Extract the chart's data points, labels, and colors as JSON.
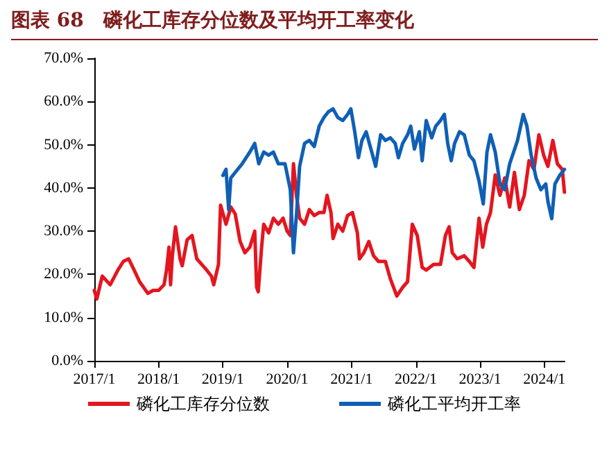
{
  "chart_data": {
    "type": "line",
    "title": "图表 68　磷化工库存分位数及平均开工率变化",
    "xlim": [
      "2017-01-01",
      "2024-04-25"
    ],
    "xticks": [
      {
        "value": "2017-01-01",
        "label": "2017/1"
      },
      {
        "value": "2018-01-01",
        "label": "2018/1"
      },
      {
        "value": "2019-01-01",
        "label": "2019/1"
      },
      {
        "value": "2020-01-01",
        "label": "2020/1"
      },
      {
        "value": "2021-01-01",
        "label": "2021/1"
      },
      {
        "value": "2022-01-01",
        "label": "2022/1"
      },
      {
        "value": "2023-01-01",
        "label": "2023/1"
      },
      {
        "value": "2024-01-01",
        "label": "2024/1"
      }
    ],
    "ylim": [
      0,
      70
    ],
    "yticks": [
      {
        "value": 0,
        "label": "0.0%"
      },
      {
        "value": 10,
        "label": "10.0%"
      },
      {
        "value": 20,
        "label": "20.0%"
      },
      {
        "value": 30,
        "label": "30.0%"
      },
      {
        "value": 40,
        "label": "40.0%"
      },
      {
        "value": 50,
        "label": "50.0%"
      },
      {
        "value": 60,
        "label": "60.0%"
      },
      {
        "value": 70,
        "label": "70.0%"
      }
    ],
    "grid": false,
    "legend": "bottom",
    "marker": "none",
    "line_style": "solid",
    "series": [
      {
        "name": "磷化工库存分位数",
        "color": "#e3161f",
        "x": [
          "2017-01-01",
          "2017-01-15",
          "2017-02-15",
          "2017-04-01",
          "2017-05-15",
          "2017-06-15",
          "2017-07-15",
          "2017-08-15",
          "2017-09-15",
          "2017-11-01",
          "2017-12-01",
          "2018-01-01",
          "2018-02-01",
          "2018-02-15",
          "2018-03-01",
          "2018-03-10",
          "2018-03-20",
          "2018-04-07",
          "2018-05-03",
          "2018-05-15",
          "2018-06-12",
          "2018-07-10",
          "2018-08-06",
          "2018-09-03",
          "2018-10-01",
          "2018-10-28",
          "2018-11-10",
          "2018-12-07",
          "2018-12-19",
          "2019-01-19",
          "2019-02-15",
          "2019-03-12",
          "2019-04-09",
          "2019-05-06",
          "2019-06-03",
          "2019-07-01",
          "2019-07-12",
          "2019-07-21",
          "2019-08-09",
          "2019-08-21",
          "2019-09-18",
          "2019-10-15",
          "2019-11-12",
          "2019-12-09",
          "2020-01-01",
          "2020-01-19",
          "2020-02-06",
          "2020-02-24",
          "2020-03-12",
          "2020-04-09",
          "2020-05-06",
          "2020-06-03",
          "2020-07-01",
          "2020-07-28",
          "2020-08-15",
          "2020-09-06",
          "2020-09-18",
          "2020-10-15",
          "2020-11-12",
          "2020-12-09",
          "2021-01-06",
          "2021-02-03",
          "2021-02-15",
          "2021-03-12",
          "2021-04-09",
          "2021-05-06",
          "2021-06-03",
          "2021-07-12",
          "2021-08-09",
          "2021-09-15",
          "2021-10-18",
          "2021-11-15",
          "2021-12-12",
          "2022-01-09",
          "2022-02-06",
          "2022-03-01",
          "2022-04-12",
          "2022-05-21",
          "2022-06-18",
          "2022-07-09",
          "2022-07-27",
          "2022-08-24",
          "2022-10-03",
          "2022-11-01",
          "2022-11-27",
          "2022-12-26",
          "2023-01-16",
          "2023-02-06",
          "2023-03-01",
          "2023-03-28",
          "2023-04-24",
          "2023-05-21",
          "2023-06-18",
          "2023-07-15",
          "2023-08-12",
          "2023-09-09",
          "2023-10-06",
          "2023-11-03",
          "2023-12-01",
          "2023-12-28",
          "2024-01-21",
          "2024-02-18",
          "2024-03-15",
          "2024-04-12",
          "2024-04-24"
        ],
        "values": [
          16.3,
          14.3,
          19.6,
          17.6,
          21,
          23,
          23.6,
          21,
          18.3,
          15.6,
          16.3,
          16.3,
          17.6,
          21,
          26.3,
          17.6,
          24.3,
          31,
          23.6,
          22,
          28,
          29,
          23.6,
          22.3,
          21,
          19.6,
          17.6,
          22.3,
          36,
          31.6,
          35.6,
          34,
          27.6,
          25,
          26.3,
          30,
          17,
          16,
          26.3,
          31.6,
          29.6,
          33,
          31.6,
          33,
          30,
          29,
          45.6,
          38,
          33,
          31.6,
          35,
          33.6,
          34.3,
          34.3,
          38.3,
          34.3,
          28.3,
          31.6,
          30,
          33.6,
          34.3,
          29.6,
          23.6,
          25,
          27.6,
          24.3,
          23,
          23,
          19,
          15,
          17,
          18.3,
          31.6,
          29,
          21.6,
          21,
          22.3,
          22.3,
          29,
          31,
          25,
          23.6,
          24.3,
          23,
          21.6,
          33,
          26.3,
          31.6,
          34.3,
          43,
          38.3,
          42.3,
          35.6,
          43.6,
          35,
          38.3,
          46.3,
          44.3,
          52.3,
          47.6,
          45,
          51,
          45.6,
          44.3,
          39
        ]
      },
      {
        "name": "磷化工平均开工率",
        "color": "#0f5fb5",
        "x": [
          "2019-01-01",
          "2019-01-19",
          "2019-02-03",
          "2019-02-15",
          "2019-03-12",
          "2019-04-21",
          "2019-06-03",
          "2019-07-01",
          "2019-07-24",
          "2019-08-21",
          "2019-09-18",
          "2019-10-15",
          "2019-11-12",
          "2019-12-20",
          "2020-01-19",
          "2020-02-06",
          "2020-02-24",
          "2020-03-12",
          "2020-04-09",
          "2020-05-06",
          "2020-06-03",
          "2020-07-01",
          "2020-07-28",
          "2020-08-22",
          "2020-09-18",
          "2020-10-15",
          "2020-11-12",
          "2020-12-09",
          "2020-12-28",
          "2021-01-19",
          "2021-02-09",
          "2021-03-01",
          "2021-03-25",
          "2021-04-21",
          "2021-05-18",
          "2021-06-15",
          "2021-07-12",
          "2021-08-09",
          "2021-09-06",
          "2021-09-24",
          "2021-10-18",
          "2021-11-15",
          "2021-12-03",
          "2021-12-24",
          "2022-01-21",
          "2022-02-06",
          "2022-03-01",
          "2022-04-01",
          "2022-04-24",
          "2022-05-21",
          "2022-06-12",
          "2022-07-01",
          "2022-07-21",
          "2022-08-09",
          "2022-09-06",
          "2022-10-03",
          "2022-11-01",
          "2022-11-27",
          "2022-12-26",
          "2023-01-19",
          "2023-02-09",
          "2023-03-01",
          "2023-03-28",
          "2023-04-24",
          "2023-05-21",
          "2023-06-18",
          "2023-08-01",
          "2023-09-03",
          "2023-09-24",
          "2023-10-18",
          "2023-11-15",
          "2023-12-12",
          "2024-01-09",
          "2024-01-21",
          "2024-02-12",
          "2024-03-01",
          "2024-03-28",
          "2024-04-24"
        ],
        "values": [
          42.9,
          44.3,
          35,
          42.3,
          43.6,
          45.6,
          48.3,
          50.3,
          45.6,
          48.3,
          47.6,
          48.3,
          45.6,
          45.6,
          39.6,
          25,
          34.3,
          45,
          50.3,
          51,
          49.6,
          54.3,
          56.3,
          57.6,
          58.3,
          56.3,
          55.6,
          57,
          58.3,
          53,
          47,
          51,
          53,
          49,
          45,
          52.3,
          51,
          51.6,
          50.3,
          47,
          50.3,
          52.3,
          54.3,
          49,
          53,
          46.3,
          55.6,
          51.6,
          54.3,
          55.6,
          57,
          50.3,
          46.3,
          50.3,
          53,
          52.3,
          47.6,
          46.3,
          41.6,
          36.3,
          48.3,
          52.3,
          48.3,
          40.9,
          39.6,
          45.6,
          50.9,
          57,
          54.3,
          47.6,
          42.3,
          39.6,
          40.9,
          36.9,
          32.9,
          40.9,
          42.9,
          44.3
        ]
      }
    ]
  }
}
